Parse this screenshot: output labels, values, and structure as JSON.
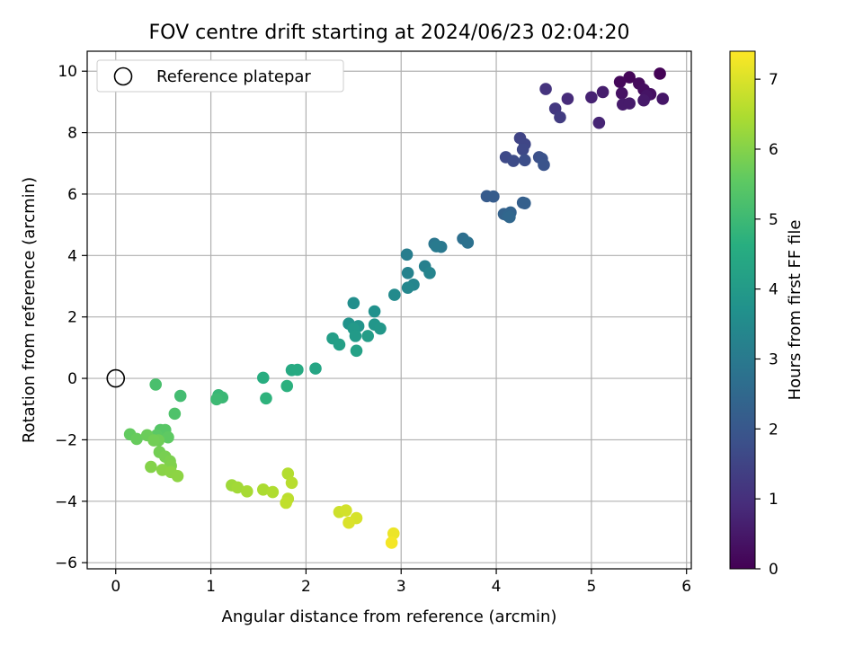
{
  "chart_data": {
    "type": "scatter",
    "title": "FOV centre drift starting at 2024/06/23 02:04:20",
    "xlabel": "Angular distance from reference (arcmin)",
    "ylabel": "Rotation from reference (arcmin)",
    "xlim": [
      -0.3,
      6.05
    ],
    "ylim": [
      -6.2,
      10.65
    ],
    "xticks": [
      0,
      1,
      2,
      3,
      4,
      5,
      6
    ],
    "yticks": [
      -6,
      -4,
      -2,
      0,
      2,
      4,
      6,
      8,
      10
    ],
    "grid": true,
    "legend": {
      "position": "top-left",
      "entries": [
        "Reference platepar"
      ]
    },
    "reference_point": {
      "x": 0,
      "y": 0
    },
    "colorbar": {
      "label": "Hours from first FF file",
      "range": [
        0,
        7.4
      ],
      "ticks": [
        0,
        1,
        2,
        3,
        4,
        5,
        6,
        7
      ],
      "colormap": "viridis"
    },
    "points": [
      {
        "x": 5.72,
        "y": 9.92,
        "c": 0.05
      },
      {
        "x": 5.4,
        "y": 9.8,
        "c": 0.1
      },
      {
        "x": 5.3,
        "y": 9.65,
        "c": 0.15
      },
      {
        "x": 5.5,
        "y": 9.6,
        "c": 0.2
      },
      {
        "x": 5.55,
        "y": 9.4,
        "c": 0.25
      },
      {
        "x": 5.62,
        "y": 9.25,
        "c": 0.3
      },
      {
        "x": 5.32,
        "y": 9.28,
        "c": 0.35
      },
      {
        "x": 5.58,
        "y": 9.2,
        "c": 0.4
      },
      {
        "x": 5.75,
        "y": 9.1,
        "c": 0.45
      },
      {
        "x": 5.55,
        "y": 9.05,
        "c": 0.5
      },
      {
        "x": 5.33,
        "y": 8.92,
        "c": 0.55
      },
      {
        "x": 5.4,
        "y": 8.95,
        "c": 0.55
      },
      {
        "x": 5.12,
        "y": 9.32,
        "c": 0.6
      },
      {
        "x": 5.0,
        "y": 9.15,
        "c": 0.7
      },
      {
        "x": 5.08,
        "y": 8.32,
        "c": 0.75
      },
      {
        "x": 4.75,
        "y": 9.1,
        "c": 0.9
      },
      {
        "x": 4.52,
        "y": 9.42,
        "c": 1.1
      },
      {
        "x": 4.62,
        "y": 8.78,
        "c": 1.2
      },
      {
        "x": 4.67,
        "y": 8.5,
        "c": 1.3
      },
      {
        "x": 4.25,
        "y": 7.82,
        "c": 1.5
      },
      {
        "x": 4.3,
        "y": 7.62,
        "c": 1.55
      },
      {
        "x": 4.28,
        "y": 7.45,
        "c": 1.6
      },
      {
        "x": 4.1,
        "y": 7.2,
        "c": 1.65
      },
      {
        "x": 4.18,
        "y": 7.08,
        "c": 1.7
      },
      {
        "x": 4.3,
        "y": 7.1,
        "c": 1.75
      },
      {
        "x": 4.45,
        "y": 7.2,
        "c": 1.8
      },
      {
        "x": 4.48,
        "y": 7.15,
        "c": 1.85
      },
      {
        "x": 4.5,
        "y": 6.95,
        "c": 1.9
      },
      {
        "x": 3.9,
        "y": 5.93,
        "c": 2.1
      },
      {
        "x": 3.97,
        "y": 5.92,
        "c": 2.15
      },
      {
        "x": 4.28,
        "y": 5.72,
        "c": 2.2
      },
      {
        "x": 4.3,
        "y": 5.7,
        "c": 2.25
      },
      {
        "x": 4.08,
        "y": 5.35,
        "c": 2.3
      },
      {
        "x": 4.15,
        "y": 5.4,
        "c": 2.35
      },
      {
        "x": 4.12,
        "y": 5.3,
        "c": 2.4
      },
      {
        "x": 4.14,
        "y": 5.25,
        "c": 2.45
      },
      {
        "x": 3.65,
        "y": 4.55,
        "c": 2.7
      },
      {
        "x": 3.7,
        "y": 4.42,
        "c": 2.75
      },
      {
        "x": 3.35,
        "y": 4.38,
        "c": 2.9
      },
      {
        "x": 3.42,
        "y": 4.28,
        "c": 2.95
      },
      {
        "x": 3.37,
        "y": 4.3,
        "c": 3.0
      },
      {
        "x": 3.06,
        "y": 4.03,
        "c": 3.1
      },
      {
        "x": 3.25,
        "y": 3.65,
        "c": 3.2
      },
      {
        "x": 3.07,
        "y": 3.43,
        "c": 3.25
      },
      {
        "x": 3.3,
        "y": 3.43,
        "c": 3.3
      },
      {
        "x": 3.13,
        "y": 3.05,
        "c": 3.35
      },
      {
        "x": 3.07,
        "y": 2.95,
        "c": 3.4
      },
      {
        "x": 2.93,
        "y": 2.72,
        "c": 3.5
      },
      {
        "x": 2.5,
        "y": 2.45,
        "c": 3.6
      },
      {
        "x": 2.72,
        "y": 2.18,
        "c": 3.7
      },
      {
        "x": 2.45,
        "y": 1.78,
        "c": 3.75
      },
      {
        "x": 2.55,
        "y": 1.7,
        "c": 3.8
      },
      {
        "x": 2.72,
        "y": 1.75,
        "c": 3.85
      },
      {
        "x": 2.78,
        "y": 1.62,
        "c": 3.9
      },
      {
        "x": 2.5,
        "y": 1.62,
        "c": 3.95
      },
      {
        "x": 2.52,
        "y": 1.38,
        "c": 4.0
      },
      {
        "x": 2.65,
        "y": 1.38,
        "c": 4.05
      },
      {
        "x": 2.28,
        "y": 1.3,
        "c": 4.1
      },
      {
        "x": 2.35,
        "y": 1.1,
        "c": 4.15
      },
      {
        "x": 2.53,
        "y": 0.9,
        "c": 4.2
      },
      {
        "x": 2.1,
        "y": 0.32,
        "c": 4.35
      },
      {
        "x": 1.85,
        "y": 0.27,
        "c": 4.45
      },
      {
        "x": 1.91,
        "y": 0.28,
        "c": 4.5
      },
      {
        "x": 1.55,
        "y": 0.02,
        "c": 4.6
      },
      {
        "x": 1.8,
        "y": -0.25,
        "c": 4.7
      },
      {
        "x": 1.58,
        "y": -0.65,
        "c": 4.75
      },
      {
        "x": 1.08,
        "y": -0.55,
        "c": 4.9
      },
      {
        "x": 1.12,
        "y": -0.62,
        "c": 4.95
      },
      {
        "x": 1.06,
        "y": -0.68,
        "c": 5.0
      },
      {
        "x": 0.68,
        "y": -0.57,
        "c": 5.1
      },
      {
        "x": 0.42,
        "y": -0.2,
        "c": 5.2
      },
      {
        "x": 0.62,
        "y": -1.15,
        "c": 5.3
      },
      {
        "x": 0.47,
        "y": -1.68,
        "c": 5.4
      },
      {
        "x": 0.52,
        "y": -1.68,
        "c": 5.45
      },
      {
        "x": 0.43,
        "y": -1.85,
        "c": 5.5
      },
      {
        "x": 0.55,
        "y": -1.92,
        "c": 5.55
      },
      {
        "x": 0.15,
        "y": -1.82,
        "c": 5.6
      },
      {
        "x": 0.22,
        "y": -1.97,
        "c": 5.65
      },
      {
        "x": 0.33,
        "y": -1.85,
        "c": 5.7
      },
      {
        "x": 0.45,
        "y": -2.02,
        "c": 5.75
      },
      {
        "x": 0.4,
        "y": -2.02,
        "c": 5.78
      },
      {
        "x": 0.46,
        "y": -2.4,
        "c": 5.8
      },
      {
        "x": 0.52,
        "y": -2.55,
        "c": 5.85
      },
      {
        "x": 0.57,
        "y": -2.7,
        "c": 5.9
      },
      {
        "x": 0.58,
        "y": -2.85,
        "c": 5.95
      },
      {
        "x": 0.37,
        "y": -2.88,
        "c": 6.0
      },
      {
        "x": 0.49,
        "y": -2.98,
        "c": 6.05
      },
      {
        "x": 0.58,
        "y": -3.05,
        "c": 6.08
      },
      {
        "x": 0.65,
        "y": -3.18,
        "c": 6.1
      },
      {
        "x": 1.22,
        "y": -3.48,
        "c": 6.3
      },
      {
        "x": 1.28,
        "y": -3.55,
        "c": 6.35
      },
      {
        "x": 1.38,
        "y": -3.68,
        "c": 6.4
      },
      {
        "x": 1.55,
        "y": -3.62,
        "c": 6.45
      },
      {
        "x": 1.65,
        "y": -3.7,
        "c": 6.5
      },
      {
        "x": 1.81,
        "y": -3.1,
        "c": 6.55
      },
      {
        "x": 1.85,
        "y": -3.4,
        "c": 6.6
      },
      {
        "x": 1.81,
        "y": -3.92,
        "c": 6.65
      },
      {
        "x": 1.79,
        "y": -4.05,
        "c": 6.7
      },
      {
        "x": 2.35,
        "y": -4.35,
        "c": 6.85
      },
      {
        "x": 2.42,
        "y": -4.3,
        "c": 6.9
      },
      {
        "x": 2.53,
        "y": -4.55,
        "c": 6.95
      },
      {
        "x": 2.45,
        "y": -4.7,
        "c": 7.0
      },
      {
        "x": 2.92,
        "y": -5.05,
        "c": 7.2
      },
      {
        "x": 2.9,
        "y": -5.35,
        "c": 7.3
      }
    ]
  }
}
